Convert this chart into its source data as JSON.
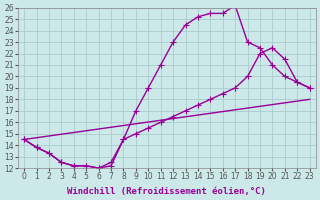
{
  "xlabel": "Windchill (Refroidissement éolien,°C)",
  "background_color": "#cce8e8",
  "line_color": "#990099",
  "grid_color": "#aacccc",
  "xlim": [
    -0.5,
    23.5
  ],
  "ylim": [
    12,
    26
  ],
  "xticks": [
    0,
    1,
    2,
    3,
    4,
    5,
    6,
    7,
    8,
    9,
    10,
    11,
    12,
    13,
    14,
    15,
    16,
    17,
    18,
    19,
    20,
    21,
    22,
    23
  ],
  "yticks": [
    12,
    13,
    14,
    15,
    16,
    17,
    18,
    19,
    20,
    21,
    22,
    23,
    24,
    25,
    26
  ],
  "line1_x": [
    0,
    1,
    2,
    3,
    4,
    5,
    6,
    7,
    8,
    9,
    10,
    11,
    12,
    13,
    14,
    15,
    16,
    17,
    18,
    19,
    20,
    21,
    22,
    23
  ],
  "line1_y": [
    14.5,
    13.8,
    13.3,
    12.5,
    12.2,
    12.2,
    12.0,
    12.2,
    14.5,
    17.0,
    19.0,
    21.0,
    23.0,
    24.5,
    25.2,
    25.5,
    25.5,
    26.2,
    23.0,
    22.5,
    21.0,
    20.0,
    19.5,
    19.0
  ],
  "line2_x": [
    0,
    1,
    2,
    3,
    4,
    5,
    6,
    7,
    8,
    9,
    10,
    11,
    12,
    13,
    14,
    15,
    16,
    17,
    18,
    19,
    20,
    21,
    22,
    23
  ],
  "line2_y": [
    14.5,
    13.8,
    13.3,
    12.5,
    12.2,
    12.2,
    12.0,
    12.5,
    14.5,
    15.0,
    15.5,
    16.0,
    16.5,
    17.0,
    17.5,
    18.0,
    18.5,
    19.0,
    20.0,
    22.0,
    22.5,
    21.5,
    19.5,
    19.0
  ],
  "line3_x": [
    0,
    23
  ],
  "line3_y": [
    14.5,
    18.0
  ],
  "marker": "+",
  "markersize": 4,
  "linewidth": 1.0,
  "tick_fontsize": 5.5,
  "xlabel_fontsize": 6.5
}
